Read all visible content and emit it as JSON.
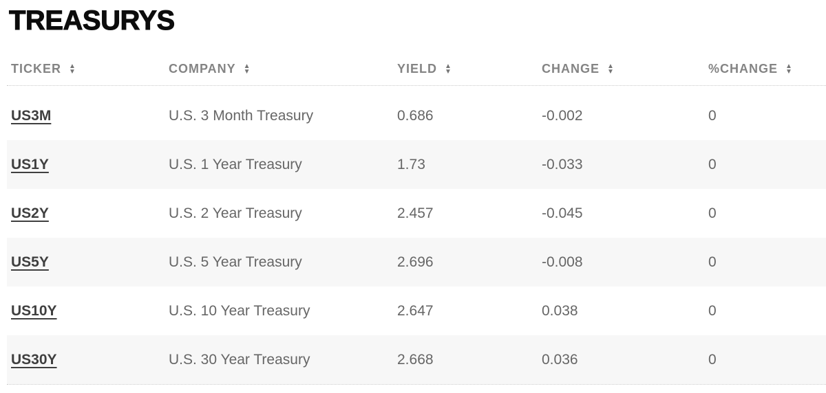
{
  "page": {
    "title": "TREASURYS"
  },
  "table": {
    "columns": [
      {
        "key": "ticker",
        "label": "TICKER",
        "sortable": true
      },
      {
        "key": "company",
        "label": "COMPANY",
        "sortable": true
      },
      {
        "key": "yield",
        "label": "YIELD",
        "sortable": true
      },
      {
        "key": "change",
        "label": "CHANGE",
        "sortable": true
      },
      {
        "key": "pct_change",
        "label": "%CHANGE",
        "sortable": true
      }
    ],
    "rows": [
      {
        "ticker": "US3M",
        "company": "U.S. 3 Month Treasury",
        "yield": "0.686",
        "change": "-0.002",
        "pct_change": "0"
      },
      {
        "ticker": "US1Y",
        "company": "U.S. 1 Year Treasury",
        "yield": "1.73",
        "change": "-0.033",
        "pct_change": "0"
      },
      {
        "ticker": "US2Y",
        "company": "U.S. 2 Year Treasury",
        "yield": "2.457",
        "change": "-0.045",
        "pct_change": "0"
      },
      {
        "ticker": "US5Y",
        "company": "U.S. 5 Year Treasury",
        "yield": "2.696",
        "change": "-0.008",
        "pct_change": "0"
      },
      {
        "ticker": "US10Y",
        "company": "U.S. 10 Year Treasury",
        "yield": "2.647",
        "change": "0.038",
        "pct_change": "0"
      },
      {
        "ticker": "US30Y",
        "company": "U.S. 30 Year Treasury",
        "yield": "2.668",
        "change": "0.036",
        "pct_change": "0"
      }
    ]
  },
  "icons": {
    "sort_up": "▲",
    "sort_down": "▼"
  },
  "colors": {
    "stripe": "#f7f7f7",
    "header_text": "#848484",
    "body_text": "#666666",
    "ticker_text": "#3f3f3f",
    "title_text": "#0c0c0c",
    "border_dotted": "#c9c9c9",
    "arrow": "#757575"
  }
}
